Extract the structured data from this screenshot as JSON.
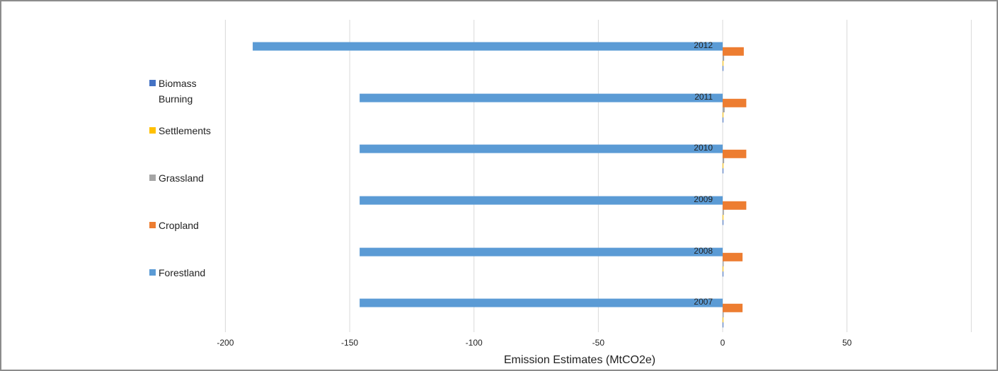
{
  "chart_data": {
    "type": "bar",
    "orientation": "horizontal",
    "title": "",
    "xlabel": "Emission Estimates (MtCO2e)",
    "ylabel": "",
    "xlim": [
      -200,
      100
    ],
    "xticks": [
      -200,
      -150,
      -100,
      -50,
      0,
      50
    ],
    "grid": true,
    "legend_position": "left",
    "categories": [
      "2012",
      "2011",
      "2010",
      "2009",
      "2008",
      "2007"
    ],
    "series": [
      {
        "name": "Biomass Burning",
        "color": "#4472c4",
        "values": [
          0.1,
          0.1,
          0.1,
          0.1,
          0.1,
          0.1
        ]
      },
      {
        "name": "Settlements",
        "color": "#ffc000",
        "values": [
          0.1,
          0.1,
          0.1,
          0.1,
          0.1,
          0.1
        ]
      },
      {
        "name": "Grassland",
        "color": "#a5a5a5",
        "values": [
          0.6,
          0.8,
          0.6,
          0.5,
          0.4,
          0.4
        ]
      },
      {
        "name": "Cropland",
        "color": "#ed7d31",
        "values": [
          8.5,
          9.5,
          9.5,
          9.5,
          8.0,
          8.0
        ]
      },
      {
        "name": "Forestland",
        "color": "#5b9bd5",
        "values": [
          -189,
          -146,
          -146,
          -146,
          -146,
          -146
        ]
      }
    ]
  }
}
